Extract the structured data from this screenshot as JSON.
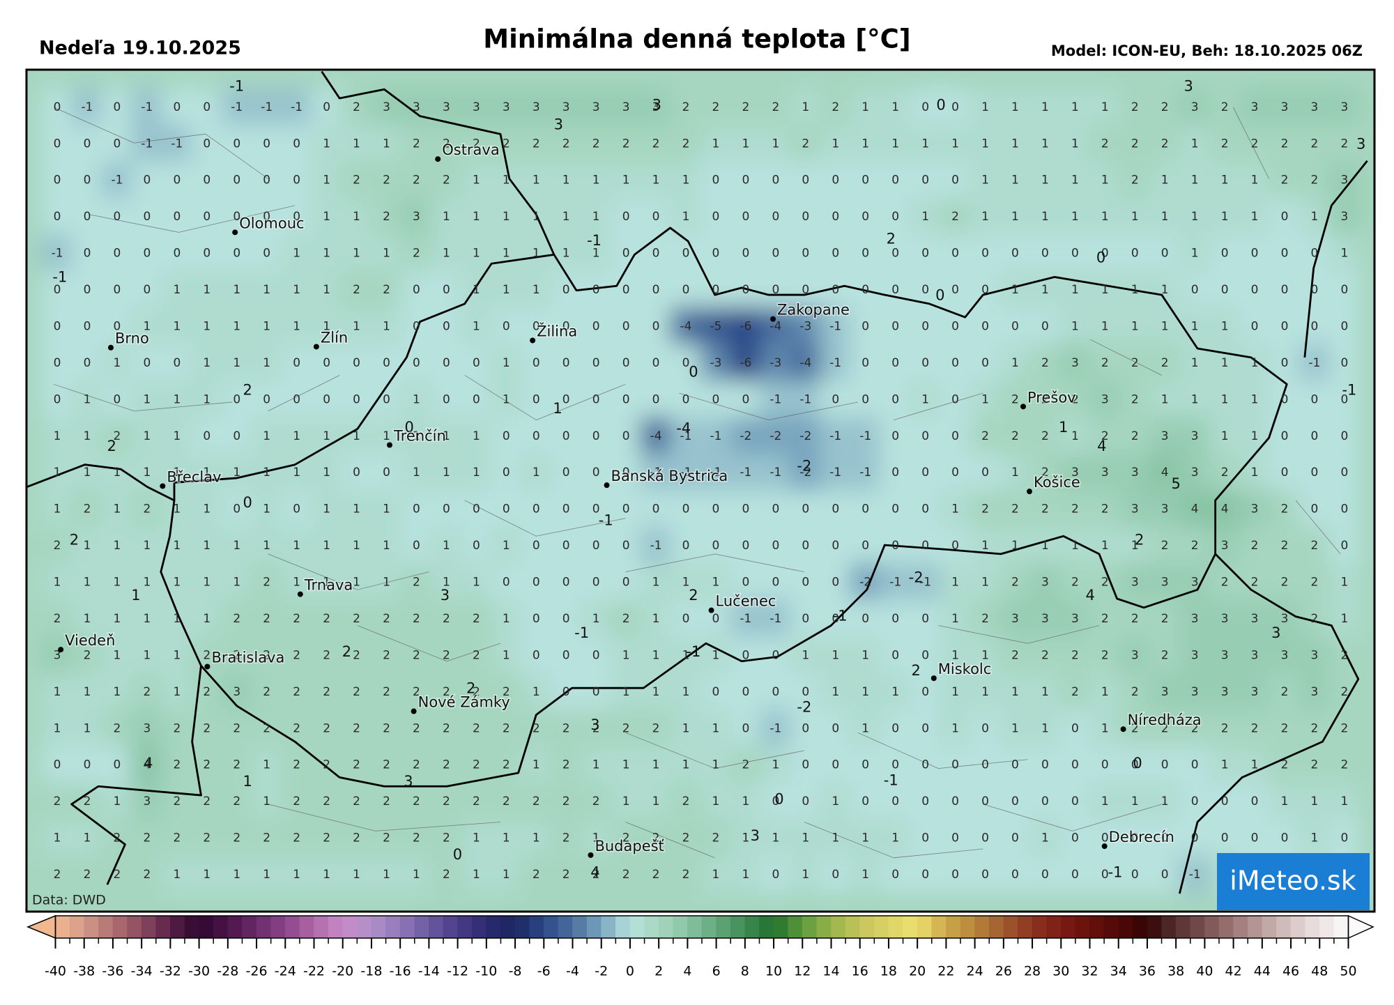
{
  "header": {
    "date": "Nedeľa 19.10.2025",
    "title": "Minimálna denná teplota [°C]",
    "model": "Model: ICON-EU, Beh: 18.10.2025 06Z"
  },
  "source": "Data: DWD",
  "logo": "iMeteo.sk",
  "cities": [
    "Ostrava",
    "Olomouc",
    "Brno",
    "Zlín",
    "Žilina",
    "Zakopane",
    "Trenčín",
    "Prešov",
    "Břeclav",
    "Banská Bystrica",
    "Košice",
    "Trnava",
    "Lučenec",
    "Viedeň",
    "Bratislava",
    "Miskolc",
    "Nové Zámky",
    "Níredháza",
    "Budapešť",
    "Debrecín"
  ],
  "grid": {
    "rows": [
      [
        0,
        -1,
        0,
        -1,
        0,
        0,
        -1,
        -1,
        -1,
        0,
        2,
        3,
        3,
        3,
        3,
        3,
        3,
        3,
        3,
        3,
        3,
        2,
        2,
        2,
        2,
        1,
        2,
        1,
        1,
        0,
        0,
        1,
        1,
        1,
        1,
        1,
        2,
        2,
        3,
        2,
        3,
        3,
        3,
        3
      ],
      [
        0,
        0,
        0,
        -1,
        -1,
        0,
        0,
        0,
        0,
        1,
        1,
        1,
        2,
        2,
        2,
        2,
        2,
        2,
        2,
        2,
        2,
        2,
        1,
        1,
        1,
        2,
        1,
        1,
        1,
        1,
        1,
        1,
        1,
        1,
        1,
        2,
        2,
        2,
        1,
        2,
        2,
        2,
        2,
        2
      ],
      [
        0,
        0,
        -1,
        0,
        0,
        0,
        0,
        0,
        0,
        1,
        2,
        2,
        2,
        2,
        1,
        1,
        1,
        1,
        1,
        1,
        1,
        1,
        0,
        0,
        0,
        0,
        0,
        0,
        0,
        0,
        0,
        1,
        1,
        1,
        1,
        1,
        2,
        1,
        1,
        1,
        1,
        2,
        2,
        3
      ],
      [
        0,
        0,
        0,
        0,
        0,
        0,
        0,
        0,
        0,
        1,
        1,
        2,
        3,
        1,
        1,
        1,
        1,
        1,
        1,
        0,
        0,
        1,
        0,
        0,
        0,
        0,
        0,
        0,
        0,
        1,
        2,
        1,
        1,
        1,
        1,
        1,
        1,
        1,
        1,
        1,
        1,
        0,
        1,
        3
      ],
      [
        -1,
        0,
        0,
        0,
        0,
        0,
        0,
        0,
        1,
        1,
        1,
        1,
        2,
        1,
        1,
        1,
        1,
        1,
        1,
        0,
        0,
        0,
        0,
        0,
        0,
        0,
        0,
        0,
        0,
        0,
        0,
        0,
        0,
        0,
        0,
        0,
        0,
        0,
        1,
        0,
        0,
        0,
        0,
        1
      ],
      [
        0,
        0,
        0,
        0,
        1,
        1,
        1,
        1,
        1,
        1,
        2,
        2,
        0,
        0,
        1,
        1,
        1,
        0,
        0,
        0,
        0,
        0,
        0,
        0,
        0,
        0,
        0,
        0,
        0,
        0,
        0,
        0,
        1,
        1,
        1,
        1,
        1,
        1,
        0,
        0,
        0,
        0,
        0,
        0
      ],
      [
        0,
        0,
        0,
        1,
        1,
        1,
        1,
        1,
        1,
        1,
        1,
        1,
        0,
        0,
        1,
        0,
        0,
        0,
        0,
        0,
        0,
        -4,
        -5,
        -6,
        -4,
        -3,
        -1,
        0,
        0,
        0,
        0,
        0,
        0,
        0,
        1,
        1,
        1,
        1,
        1,
        1,
        0,
        0,
        0,
        0
      ],
      [
        0,
        0,
        1,
        0,
        0,
        1,
        1,
        1,
        0,
        0,
        0,
        0,
        0,
        0,
        0,
        1,
        0,
        0,
        0,
        0,
        0,
        0,
        -3,
        -6,
        -3,
        -4,
        -1,
        0,
        0,
        0,
        0,
        0,
        1,
        2,
        3,
        2,
        2,
        2,
        1,
        1,
        1,
        0,
        -1,
        0
      ],
      [
        0,
        1,
        0,
        1,
        1,
        1,
        0,
        0,
        0,
        0,
        0,
        0,
        1,
        0,
        0,
        1,
        0,
        0,
        0,
        0,
        0,
        0,
        0,
        0,
        -1,
        -1,
        0,
        0,
        0,
        1,
        0,
        1,
        2,
        2,
        2,
        3,
        2,
        1,
        1,
        1,
        1,
        0,
        0,
        0
      ],
      [
        1,
        1,
        2,
        1,
        1,
        0,
        0,
        1,
        1,
        1,
        1,
        1,
        1,
        1,
        1,
        0,
        0,
        0,
        0,
        0,
        -4,
        -1,
        -1,
        -2,
        -2,
        -2,
        -1,
        -1,
        0,
        0,
        0,
        2,
        2,
        2,
        1,
        2,
        2,
        3,
        3,
        1,
        1,
        0,
        0,
        0
      ],
      [
        1,
        1,
        1,
        1,
        1,
        1,
        1,
        1,
        1,
        1,
        0,
        0,
        1,
        1,
        1,
        0,
        1,
        0,
        0,
        0,
        -1,
        -1,
        -1,
        -1,
        -1,
        -2,
        -1,
        -1,
        0,
        0,
        0,
        0,
        1,
        2,
        3,
        3,
        3,
        4,
        3,
        2,
        1,
        0,
        0,
        0
      ],
      [
        1,
        2,
        1,
        2,
        1,
        1,
        0,
        1,
        0,
        1,
        1,
        1,
        0,
        0,
        0,
        0,
        0,
        0,
        0,
        0,
        0,
        0,
        0,
        0,
        0,
        0,
        0,
        0,
        0,
        0,
        1,
        2,
        2,
        2,
        2,
        2,
        3,
        3,
        4,
        4,
        3,
        2,
        0,
        0
      ],
      [
        2,
        1,
        1,
        1,
        1,
        1,
        1,
        1,
        1,
        1,
        1,
        1,
        0,
        1,
        0,
        1,
        0,
        0,
        0,
        0,
        -1,
        0,
        0,
        0,
        0,
        0,
        0,
        0,
        0,
        0,
        0,
        1,
        1,
        1,
        1,
        1,
        1,
        2,
        2,
        3,
        2,
        2,
        2,
        0
      ],
      [
        1,
        1,
        1,
        1,
        1,
        1,
        1,
        2,
        1,
        1,
        1,
        1,
        2,
        1,
        1,
        0,
        0,
        0,
        0,
        0,
        1,
        1,
        1,
        0,
        0,
        0,
        0,
        -2,
        -1,
        -1,
        1,
        1,
        2,
        3,
        2,
        2,
        3,
        3,
        3,
        2,
        2,
        2,
        2,
        1
      ],
      [
        2,
        1,
        1,
        1,
        1,
        1,
        2,
        2,
        2,
        2,
        2,
        2,
        2,
        2,
        2,
        1,
        0,
        0,
        1,
        2,
        1,
        0,
        0,
        -1,
        -1,
        0,
        0,
        0,
        0,
        0,
        1,
        2,
        3,
        3,
        3,
        2,
        2,
        2,
        3,
        3,
        3,
        3,
        2,
        1
      ],
      [
        3,
        2,
        1,
        1,
        1,
        2,
        2,
        2,
        2,
        2,
        2,
        2,
        2,
        2,
        2,
        1,
        0,
        0,
        0,
        1,
        1,
        1,
        1,
        0,
        0,
        1,
        1,
        1,
        0,
        0,
        1,
        1,
        2,
        2,
        2,
        2,
        3,
        2,
        3,
        3,
        3,
        3,
        3,
        2
      ],
      [
        1,
        1,
        1,
        2,
        1,
        2,
        3,
        2,
        2,
        2,
        2,
        2,
        2,
        2,
        2,
        2,
        1,
        0,
        0,
        1,
        1,
        1,
        0,
        0,
        0,
        0,
        1,
        1,
        1,
        0,
        1,
        1,
        1,
        1,
        2,
        1,
        2,
        3,
        3,
        3,
        3,
        2,
        3,
        2
      ],
      [
        1,
        1,
        2,
        3,
        2,
        2,
        2,
        2,
        2,
        2,
        2,
        2,
        2,
        2,
        2,
        2,
        2,
        2,
        2,
        2,
        2,
        1,
        1,
        0,
        -1,
        0,
        0,
        1,
        0,
        0,
        1,
        0,
        1,
        1,
        0,
        1,
        2,
        2,
        2,
        2,
        2,
        2,
        2,
        2
      ],
      [
        0,
        0,
        0,
        4,
        2,
        2,
        2,
        1,
        2,
        2,
        2,
        2,
        2,
        2,
        2,
        2,
        1,
        2,
        1,
        1,
        1,
        1,
        1,
        2,
        1,
        0,
        0,
        0,
        0,
        0,
        0,
        0,
        0,
        0,
        0,
        0,
        0,
        0,
        0,
        1,
        1,
        2,
        2,
        2
      ],
      [
        2,
        2,
        1,
        3,
        2,
        2,
        2,
        1,
        2,
        2,
        2,
        2,
        2,
        2,
        2,
        2,
        2,
        2,
        2,
        1,
        1,
        2,
        1,
        1,
        0,
        0,
        1,
        0,
        0,
        0,
        0,
        0,
        0,
        0,
        0,
        1,
        1,
        1,
        0,
        0,
        0,
        1,
        1,
        1
      ],
      [
        1,
        1,
        2,
        2,
        2,
        2,
        2,
        2,
        2,
        2,
        2,
        2,
        2,
        2,
        1,
        1,
        1,
        2,
        1,
        2,
        2,
        2,
        2,
        1,
        1,
        1,
        1,
        1,
        1,
        0,
        0,
        0,
        0,
        1,
        0,
        0,
        0,
        0,
        0,
        0,
        0,
        0,
        1,
        0
      ],
      [
        2,
        2,
        2,
        2,
        1,
        1,
        1,
        1,
        1,
        1,
        1,
        1,
        1,
        2,
        1,
        1,
        2,
        2,
        2,
        2,
        2,
        2,
        1,
        1,
        0,
        1,
        0,
        1,
        0,
        0,
        0,
        0,
        0,
        0,
        0,
        0,
        0,
        0,
        -1,
        1,
        0,
        0,
        0,
        0
      ]
    ]
  },
  "extrema": [
    -1,
    3,
    3,
    3,
    0,
    3,
    -1,
    2,
    0,
    0,
    -1,
    0,
    2,
    1,
    0,
    -4,
    2,
    4,
    1,
    -2,
    5,
    0,
    -1,
    2,
    2,
    1,
    3,
    2,
    4,
    -2,
    -1,
    -1,
    3,
    2,
    -1,
    2,
    2,
    -2,
    3,
    4,
    1,
    3,
    -1,
    0,
    0,
    3,
    0,
    4,
    -1,
    -1
  ],
  "colorbar": {
    "ticks": [
      -40,
      -38,
      -36,
      -34,
      -32,
      -30,
      -28,
      -26,
      -24,
      -22,
      -20,
      -18,
      -16,
      -14,
      -12,
      -10,
      -8,
      -6,
      -4,
      -2,
      0,
      2,
      4,
      6,
      8,
      10,
      12,
      14,
      16,
      18,
      20,
      22,
      24,
      26,
      28,
      30,
      32,
      34,
      36,
      38,
      40,
      42,
      44,
      46,
      48,
      50
    ],
    "colors": [
      "#f2b890",
      "#d49a8a",
      "#b07070",
      "#8a4a60",
      "#5a2048",
      "#2e0630",
      "#4a1448",
      "#6a2a68",
      "#8a4488",
      "#b068a8",
      "#c88ac8",
      "#b090c8",
      "#9078b8",
      "#6a5aa0",
      "#4a3c88",
      "#2c2a70",
      "#1a2660",
      "#2c4a88",
      "#4a6e9e",
      "#78a4be",
      "#b8e2de",
      "#a6d6c0",
      "#88c4a4",
      "#64a87c",
      "#3e8c54",
      "#22702c",
      "#5c9a3c",
      "#98b44a",
      "#c4c45c",
      "#dcd466",
      "#ece070",
      "#cca84a",
      "#b8843c",
      "#a05c30",
      "#8c3420",
      "#7c1c14",
      "#68100c",
      "#500808",
      "#320404",
      "#543030",
      "#7a5050",
      "#9c7676",
      "#bc9e9e",
      "#d6c4c4",
      "#ece2e2",
      "#fafafa"
    ]
  }
}
